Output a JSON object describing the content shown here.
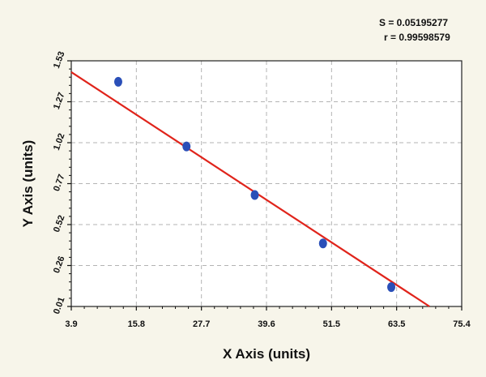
{
  "stats": {
    "s_text": "S = 0.05195277",
    "r_text": "r = 0.99598579"
  },
  "colors": {
    "background": "#f7f5ea",
    "plot_bg": "#ffffff",
    "grid": "#b3b3b3",
    "point": "#2a4fb8",
    "fit_line": "#e0241b"
  },
  "chart_data": {
    "type": "scatter",
    "title": "",
    "xlabel": "X Axis (units)",
    "ylabel": "Y Axis (units)",
    "xlim": [
      3.9,
      75.4
    ],
    "ylim": [
      0.01,
      1.53
    ],
    "x_ticks": [
      "3.9",
      "15.8",
      "27.7",
      "39.6",
      "51.5",
      "63.5",
      "75.4"
    ],
    "y_ticks": [
      "0.01",
      "0.26",
      "0.52",
      "0.77",
      "1.02",
      "1.27",
      "1.53"
    ],
    "grid": true,
    "series": [
      {
        "points": [
          {
            "x": 12.5,
            "y": 1.4
          },
          {
            "x": 25.0,
            "y": 1.0
          },
          {
            "x": 37.5,
            "y": 0.7
          },
          {
            "x": 50.0,
            "y": 0.4
          },
          {
            "x": 62.5,
            "y": 0.13
          }
        ]
      }
    ],
    "fit_line": {
      "x": [
        3.9,
        69.5
      ],
      "y": [
        1.46,
        0.01
      ]
    }
  }
}
